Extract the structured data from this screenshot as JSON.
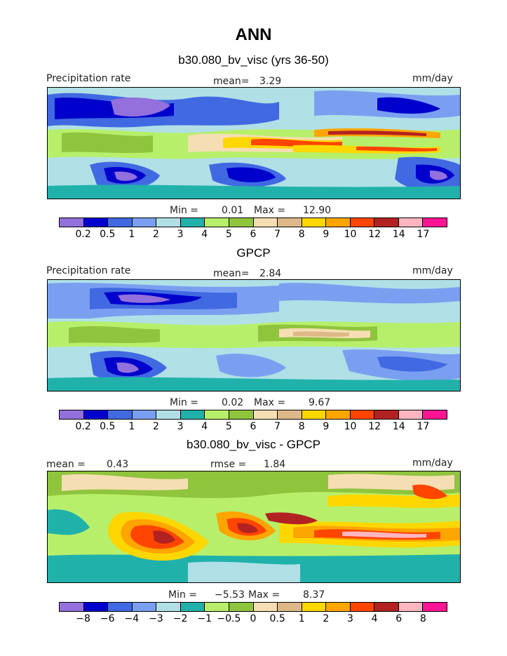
{
  "page_title": "ANN",
  "colors_main": [
    "#9370db",
    "#0000cd",
    "#4169e1",
    "#7b9ff0",
    "#b0e0e6",
    "#20b2aa",
    "#b7ef6b",
    "#8fc43d",
    "#f5deb3",
    "#deb887",
    "#ffd700",
    "#ffa500",
    "#ff4500",
    "#b22222",
    "#ffb6c1",
    "#ff1493"
  ],
  "colors_diff": [
    "#9370db",
    "#0000cd",
    "#4169e1",
    "#7b9ff0",
    "#b0e0e6",
    "#20b2aa",
    "#b7ef6b",
    "#8fc43d",
    "#f5deb3",
    "#deb887",
    "#ffd700",
    "#ffa500",
    "#ff4500",
    "#b22222",
    "#ffb6c1",
    "#ff1493"
  ],
  "panels": [
    {
      "subtitle": "b30.080_bv_visc (yrs 36-50)",
      "left_label": "Precipitation rate",
      "center_label": "mean=",
      "center_value": "3.29",
      "right_label": "mm/day",
      "min_label": "Min =",
      "min_value": "0.01",
      "max_label": "Max =",
      "max_value": "12.90",
      "ticks": [
        "0.2",
        "0.5",
        "1",
        "2",
        "3",
        "4",
        "5",
        "6",
        "7",
        "8",
        "9",
        "10",
        "12",
        "14",
        "17"
      ]
    },
    {
      "subtitle": "GPCP",
      "left_label": "Precipitation rate",
      "center_label": "mean=",
      "center_value": "2.84",
      "right_label": "mm/day",
      "min_label": "Min =",
      "min_value": "0.02",
      "max_label": "Max =",
      "max_value": "9.67",
      "ticks": [
        "0.2",
        "0.5",
        "1",
        "2",
        "3",
        "4",
        "5",
        "6",
        "7",
        "8",
        "9",
        "10",
        "12",
        "14",
        "17"
      ]
    },
    {
      "subtitle": "b30.080_bv_visc - GPCP",
      "left_label": "mean =",
      "left_value": "0.43",
      "center_label": "rmse =",
      "center_value": "1.84",
      "right_label": "mm/day",
      "min_label": "Min =",
      "min_value": "−5.53",
      "max_label": "Max =",
      "max_value": "8.37",
      "ticks": [
        "−8",
        "−6",
        "−4",
        "−3",
        "−2",
        "−1",
        "−0.5",
        "0",
        "0.5",
        "1",
        "2",
        "3",
        "4",
        "6",
        "8"
      ]
    }
  ]
}
